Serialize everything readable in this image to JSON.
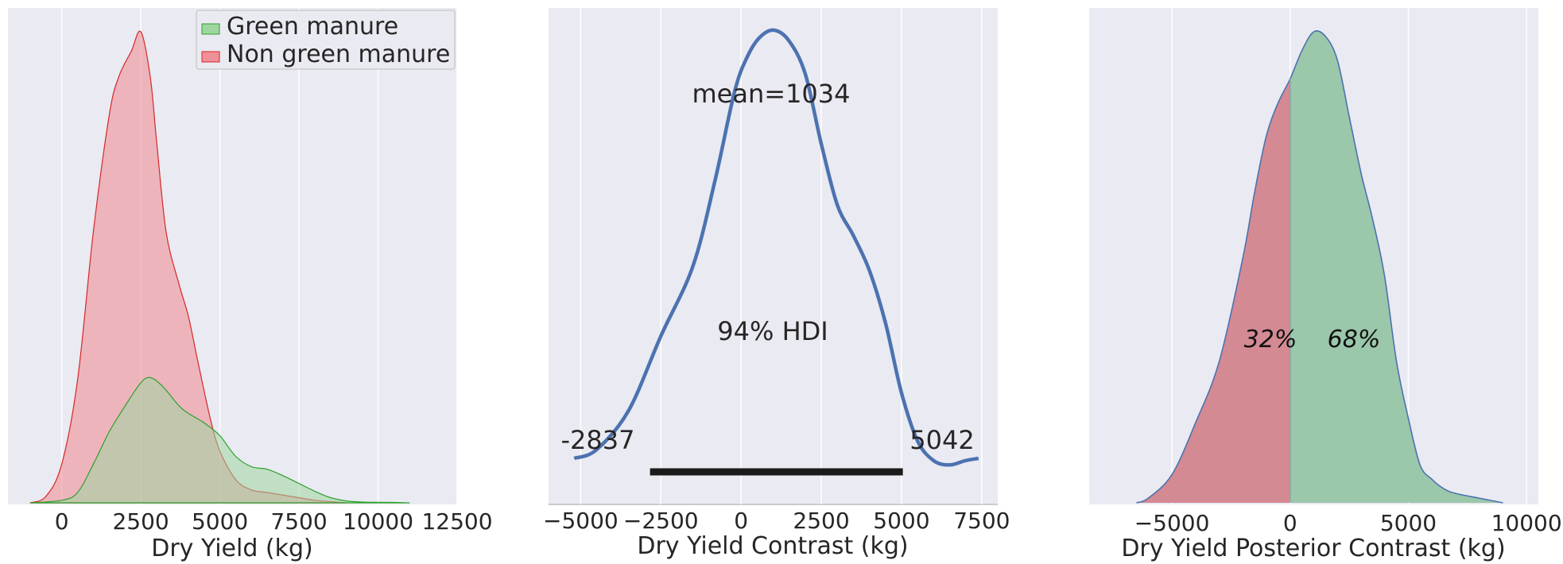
{
  "chart_data": [
    {
      "type": "area",
      "xlabel": "Dry Yield (kg)",
      "xlim": [
        -1700,
        12500
      ],
      "xticks": [
        "0",
        "2500",
        "5000",
        "7500",
        "10000",
        "12500"
      ],
      "xtick_values": [
        0,
        2500,
        5000,
        7500,
        10000,
        12500
      ],
      "grid": true,
      "legend_placement": "top-right",
      "series": [
        {
          "name": "Green manure",
          "color": "#2ca02c",
          "fill": "#9fd69f",
          "x": [
            -1000,
            0,
            500,
            1000,
            1500,
            2000,
            2500,
            2800,
            3200,
            3800,
            4500,
            5000,
            5500,
            6000,
            6500,
            7000,
            7500,
            8000,
            8500,
            9000,
            9500,
            10000,
            10500,
            11000
          ],
          "y": [
            0,
            2,
            8,
            30,
            55,
            75,
            93,
            97,
            90,
            73,
            62,
            52,
            36,
            28,
            26,
            21,
            15,
            9,
            4,
            1.5,
            0.6,
            0.4,
            0.3,
            0
          ]
        },
        {
          "name": "Non green manure",
          "color": "#d62728",
          "fill": "#ef8f97",
          "x": [
            -1000,
            -500,
            0,
            500,
            1000,
            1500,
            1800,
            2200,
            2500,
            2800,
            3000,
            3300,
            3700,
            4000,
            4300,
            4700,
            5000,
            5500,
            6000,
            6500,
            7000,
            7500,
            8000,
            8500,
            9000
          ],
          "y": [
            0,
            5,
            30,
            95,
            210,
            300,
            330,
            350,
            365,
            330,
            280,
            210,
            170,
            145,
            110,
            65,
            40,
            18,
            10,
            8,
            6,
            4,
            2,
            1,
            0
          ]
        }
      ]
    },
    {
      "type": "line",
      "xlabel": "Dry Yield Contrast (kg)",
      "xlim": [
        -6000,
        8000
      ],
      "xticks": [
        "−5000",
        "−2500",
        "0",
        "2500",
        "5000",
        "7500"
      ],
      "xtick_values": [
        -5000,
        -2500,
        0,
        2500,
        5000,
        7500
      ],
      "grid": true,
      "line_color": "#4c72b0",
      "x": [
        -5200,
        -4500,
        -3500,
        -2500,
        -1500,
        -800,
        -200,
        200,
        600,
        1034,
        1500,
        2000,
        2500,
        3000,
        3500,
        4000,
        4500,
        5000,
        5500,
        6000,
        6500,
        7000,
        7400
      ],
      "y": [
        0.02,
        0.04,
        0.13,
        0.3,
        0.46,
        0.66,
        0.86,
        0.94,
        0.985,
        1.0,
        0.975,
        0.9,
        0.74,
        0.6,
        0.53,
        0.45,
        0.33,
        0.17,
        0.06,
        0.015,
        0.005,
        0.015,
        0.02
      ],
      "mean_label": "mean=1034",
      "hdi_label": "94% HDI",
      "hdi": {
        "low": -2837,
        "high": 5042,
        "low_label": "-2837",
        "high_label": "5042"
      }
    },
    {
      "type": "area",
      "xlabel": "Dry Yield Posterior Contrast (kg)",
      "xlim": [
        -8500,
        10500
      ],
      "xticks": [
        "−5000",
        "0",
        "5000",
        "10000"
      ],
      "xtick_values": [
        -5000,
        0,
        5000,
        10000
      ],
      "grid": true,
      "line_color": "#4c72b0",
      "fill_below_zero": "#d48a93",
      "fill_above_zero": "#9bc7aa",
      "x": [
        -6500,
        -6000,
        -5000,
        -4000,
        -3000,
        -2000,
        -1500,
        -1000,
        -500,
        0,
        500,
        1000,
        1500,
        2000,
        2500,
        3000,
        3500,
        4000,
        4500,
        5000,
        5500,
        6000,
        6500,
        7000,
        8000,
        9000
      ],
      "y": [
        0,
        0.01,
        0.06,
        0.17,
        0.3,
        0.52,
        0.66,
        0.78,
        0.85,
        0.9,
        0.96,
        1.0,
        0.99,
        0.94,
        0.82,
        0.7,
        0.6,
        0.48,
        0.3,
        0.18,
        0.08,
        0.05,
        0.03,
        0.02,
        0.01,
        0
      ],
      "pct_below": "32%",
      "pct_above": "68%"
    }
  ]
}
